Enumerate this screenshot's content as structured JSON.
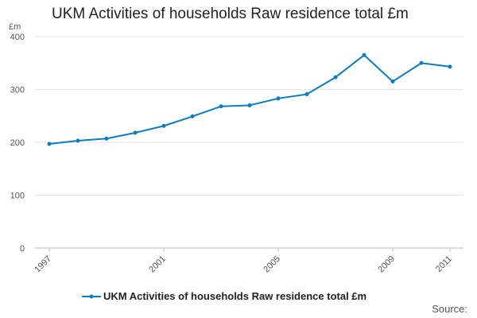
{
  "chart_data": {
    "type": "line",
    "title": "UKM Activities of households Raw residence total £m",
    "unit_label": "£m",
    "xlabel": "",
    "ylabel": "£m",
    "x": [
      1997,
      1998,
      1999,
      2000,
      2001,
      2002,
      2003,
      2004,
      2005,
      2006,
      2007,
      2008,
      2009,
      2010,
      2011
    ],
    "x_tick_labels": [
      "1997",
      "2001",
      "2005",
      "2009",
      "2011"
    ],
    "x_tick_values": [
      1997,
      2001,
      2005,
      2009,
      2011
    ],
    "xlim": [
      1997,
      2011
    ],
    "ylim": [
      0,
      400
    ],
    "y_ticks": [
      0,
      100,
      200,
      300,
      400
    ],
    "grid": true,
    "legend_position": "bottom",
    "series": [
      {
        "name": "UKM Activities of households Raw residence total £m",
        "color": "#0b7dbf",
        "values": [
          197,
          203,
          207,
          218,
          231,
          249,
          268,
          270,
          283,
          291,
          323,
          365,
          315,
          350,
          343
        ]
      }
    ]
  },
  "source_label": "Source:"
}
